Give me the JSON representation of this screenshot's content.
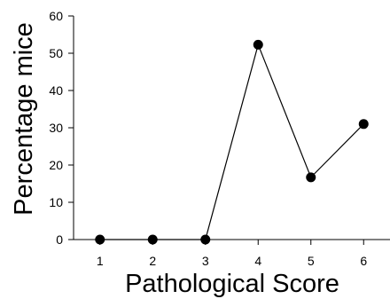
{
  "chart_data": {
    "type": "line",
    "xlabel": "Pathological Score",
    "ylabel": "Percentage mice",
    "x": [
      1,
      2,
      3,
      4,
      5,
      6
    ],
    "series": [
      {
        "values": [
          0,
          0,
          0,
          52.3,
          16.7,
          31.0
        ]
      }
    ],
    "xlim": [
      0.5,
      6.5
    ],
    "ylim": [
      0,
      60
    ],
    "xticks": [
      "1",
      "2",
      "3",
      "4",
      "5",
      "6"
    ],
    "yticks": [
      "0",
      "10",
      "20",
      "30",
      "40",
      "50",
      "60"
    ],
    "grid": false,
    "legend": "none",
    "colors": {
      "line": "#000000",
      "marker": "#000000",
      "axis": "#000000"
    }
  }
}
